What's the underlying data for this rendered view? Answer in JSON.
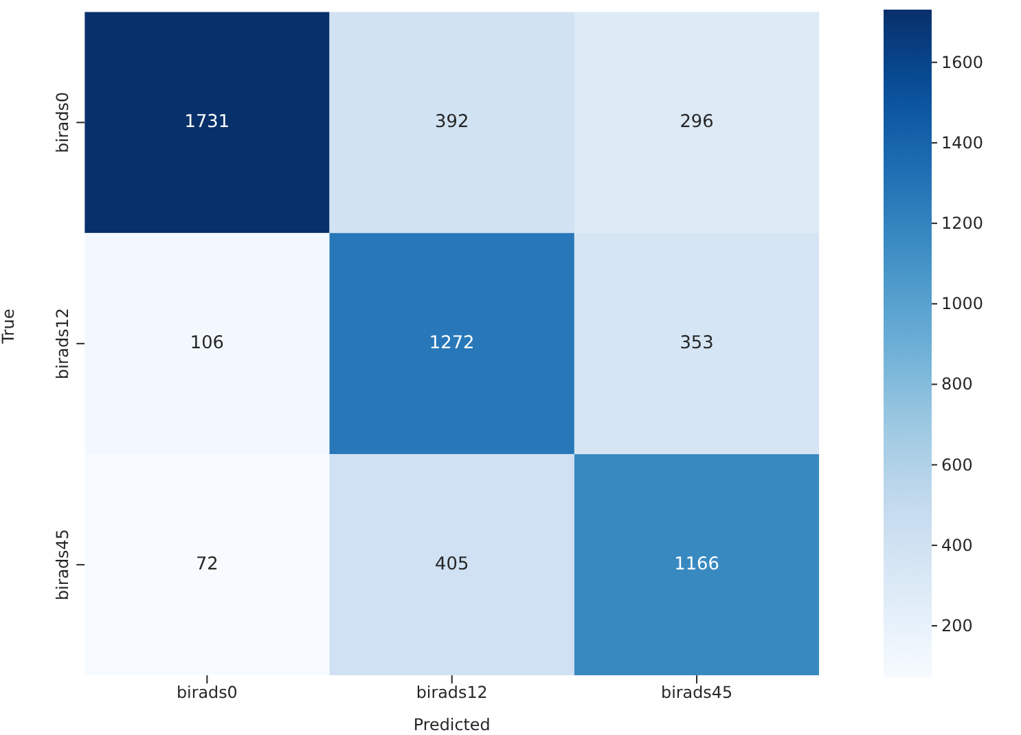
{
  "chart_data": {
    "type": "heatmap",
    "xlabel": "Predicted",
    "ylabel": "True",
    "categories": [
      "birads0",
      "birads12",
      "birads45"
    ],
    "y_categories": [
      "birads0",
      "birads12",
      "birads45"
    ],
    "cells": [
      [
        1731,
        392,
        296
      ],
      [
        106,
        1272,
        353
      ],
      [
        72,
        405,
        1166
      ]
    ],
    "data_labels": true,
    "clim": [
      72,
      1731
    ],
    "cticks": [
      200,
      400,
      600,
      800,
      1000,
      1200,
      1400,
      1600
    ]
  }
}
